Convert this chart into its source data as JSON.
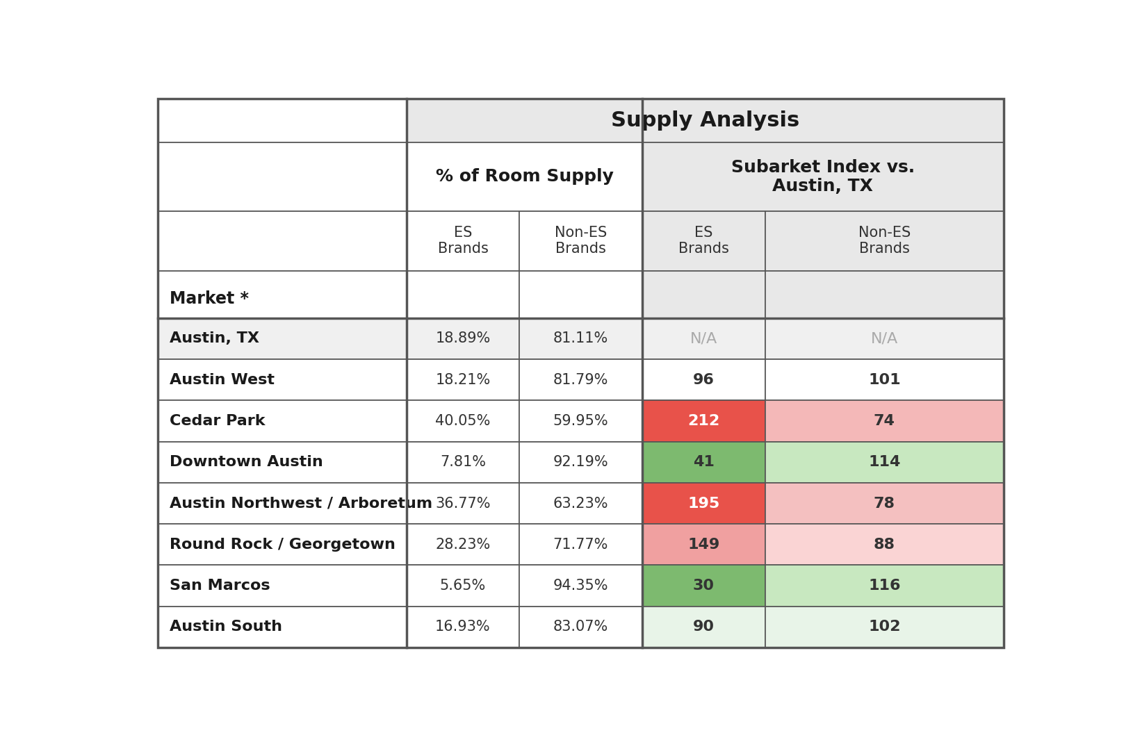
{
  "title": "Supply Analysis",
  "subtitle_pct": "% of Room Supply",
  "subtitle_idx": "Subarket Index vs.\nAustin, TX",
  "col_headers": [
    "ES\nBrands",
    "Non-ES\nBrands",
    "ES\nBrands",
    "Non-ES\nBrands"
  ],
  "row_header": "Market *",
  "markets": [
    "Austin, TX",
    "Austin West",
    "Cedar Park",
    "Downtown Austin",
    "Austin Northwest / Arboretum",
    "Round Rock / Georgetown",
    "San Marcos",
    "Austin South"
  ],
  "es_pct": [
    "18.89%",
    "18.21%",
    "40.05%",
    "7.81%",
    "36.77%",
    "28.23%",
    "5.65%",
    "16.93%"
  ],
  "non_es_pct": [
    "81.11%",
    "81.79%",
    "59.95%",
    "92.19%",
    "63.23%",
    "71.77%",
    "94.35%",
    "83.07%"
  ],
  "es_index": [
    "N/A",
    "96",
    "212",
    "41",
    "195",
    "149",
    "30",
    "90"
  ],
  "non_es_index": [
    "N/A",
    "101",
    "74",
    "114",
    "78",
    "88",
    "116",
    "102"
  ],
  "row_bg": [
    "#f0f0f0",
    "#ffffff",
    "#ffffff",
    "#ffffff",
    "#ffffff",
    "#ffffff",
    "#ffffff",
    "#ffffff"
  ],
  "es_index_bg": [
    "#f0f0f0",
    "#ffffff",
    "#e8524a",
    "#7dba6f",
    "#e8524a",
    "#f0a0a0",
    "#7dba6f",
    "#e8f4e8"
  ],
  "non_es_index_bg": [
    "#f0f0f0",
    "#ffffff",
    "#f4b8b8",
    "#c8e8c0",
    "#f4c0c0",
    "#fad4d4",
    "#c8e8c0",
    "#e8f4e8"
  ],
  "es_index_text_color": [
    "#aaaaaa",
    "#333333",
    "#ffffff",
    "#333333",
    "#ffffff",
    "#333333",
    "#333333",
    "#333333"
  ],
  "non_es_index_text_color": [
    "#aaaaaa",
    "#333333",
    "#333333",
    "#333333",
    "#333333",
    "#333333",
    "#333333",
    "#333333"
  ],
  "background_color": "#ffffff",
  "border_color": "#555555",
  "header_gray": "#e8e8e8"
}
